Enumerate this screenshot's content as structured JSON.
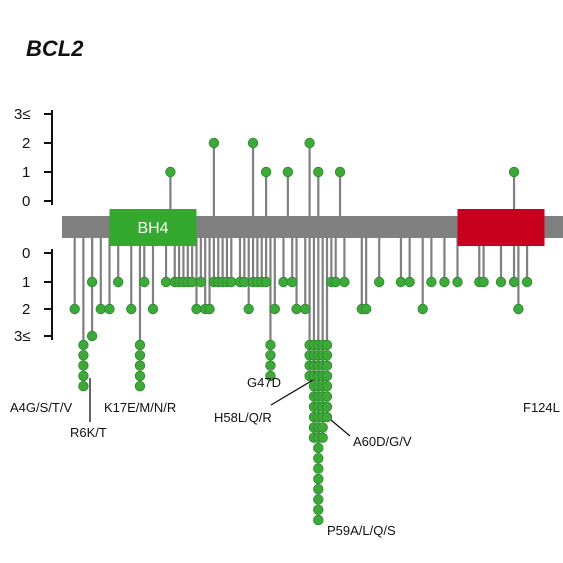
{
  "title": "BCL2",
  "chart_data": {
    "type": "lollipop",
    "top_axis_ticks": [
      "3≤",
      "2",
      "1",
      "0"
    ],
    "bottom_axis_ticks": [
      "0",
      "1",
      "2",
      "3≤"
    ],
    "domains": [
      {
        "name": "BH4",
        "start": 10,
        "end": 30,
        "color": "#35a82e",
        "label": "BH4"
      },
      {
        "name": "second-domain",
        "start": 90,
        "end": 110,
        "color": "#c8001e",
        "label": ""
      }
    ],
    "top_mutations": [
      {
        "pos": 24,
        "count": 1
      },
      {
        "pos": 34,
        "count": 2
      },
      {
        "pos": 43,
        "count": 2
      },
      {
        "pos": 46,
        "count": 1
      },
      {
        "pos": 51,
        "count": 1
      },
      {
        "pos": 56,
        "count": 2
      },
      {
        "pos": 58,
        "count": 1
      },
      {
        "pos": 63,
        "count": 1
      },
      {
        "pos": 103,
        "count": 1
      }
    ],
    "bottom_mutations": [
      {
        "pos": 2,
        "count": 2
      },
      {
        "pos": 4,
        "count": 5
      },
      {
        "pos": 6,
        "count": 1
      },
      {
        "pos": 6,
        "count": 3
      },
      {
        "pos": 8,
        "count": 2
      },
      {
        "pos": 10,
        "count": 2
      },
      {
        "pos": 12,
        "count": 1
      },
      {
        "pos": 15,
        "count": 2
      },
      {
        "pos": 17,
        "count": 5
      },
      {
        "pos": 18,
        "count": 1
      },
      {
        "pos": 20,
        "count": 2
      },
      {
        "pos": 23,
        "count": 1
      },
      {
        "pos": 25,
        "count": 1
      },
      {
        "pos": 26,
        "count": 1
      },
      {
        "pos": 27,
        "count": 1
      },
      {
        "pos": 28,
        "count": 1
      },
      {
        "pos": 29,
        "count": 1
      },
      {
        "pos": 30,
        "count": 2
      },
      {
        "pos": 31,
        "count": 1
      },
      {
        "pos": 32,
        "count": 2
      },
      {
        "pos": 33,
        "count": 2
      },
      {
        "pos": 34,
        "count": 1
      },
      {
        "pos": 35,
        "count": 1
      },
      {
        "pos": 36,
        "count": 1
      },
      {
        "pos": 37,
        "count": 1
      },
      {
        "pos": 38,
        "count": 1
      },
      {
        "pos": 40,
        "count": 1
      },
      {
        "pos": 41,
        "count": 1
      },
      {
        "pos": 42,
        "count": 2
      },
      {
        "pos": 43,
        "count": 1
      },
      {
        "pos": 44,
        "count": 1
      },
      {
        "pos": 45,
        "count": 1
      },
      {
        "pos": 46,
        "count": 1
      },
      {
        "pos": 47,
        "count": 4
      },
      {
        "pos": 48,
        "count": 2
      },
      {
        "pos": 50,
        "count": 1
      },
      {
        "pos": 52,
        "count": 1
      },
      {
        "pos": 53,
        "count": 2
      },
      {
        "pos": 55,
        "count": 2
      },
      {
        "pos": 56,
        "count": 4
      },
      {
        "pos": 57,
        "count": 10
      },
      {
        "pos": 58,
        "count": 22
      },
      {
        "pos": 59,
        "count": 10
      },
      {
        "pos": 60,
        "count": 8
      },
      {
        "pos": 61,
        "count": 1
      },
      {
        "pos": 62,
        "count": 1
      },
      {
        "pos": 64,
        "count": 1
      },
      {
        "pos": 68,
        "count": 2
      },
      {
        "pos": 69,
        "count": 2
      },
      {
        "pos": 72,
        "count": 1
      },
      {
        "pos": 77,
        "count": 1
      },
      {
        "pos": 79,
        "count": 1
      },
      {
        "pos": 82,
        "count": 2
      },
      {
        "pos": 84,
        "count": 1
      },
      {
        "pos": 87,
        "count": 1
      },
      {
        "pos": 90,
        "count": 1
      },
      {
        "pos": 95,
        "count": 1
      },
      {
        "pos": 96,
        "count": 1
      },
      {
        "pos": 100,
        "count": 1
      },
      {
        "pos": 103,
        "count": 1
      },
      {
        "pos": 104,
        "count": 2
      },
      {
        "pos": 106,
        "count": 1
      }
    ],
    "annotations": [
      {
        "text": "A4G/S/T/V"
      },
      {
        "text": "R6K/T"
      },
      {
        "text": "K17E/M/N/R"
      },
      {
        "text": "G47D"
      },
      {
        "text": "H58L/Q/R"
      },
      {
        "text": "A60D/G/V"
      },
      {
        "text": "P59A/L/Q/S"
      },
      {
        "text": "F124L"
      }
    ]
  },
  "colors": {
    "dot": "#3ea83a",
    "dot_stroke": "#2b8a2a",
    "stem": "#808080",
    "backbone": "#808080",
    "axis": "#111111"
  }
}
